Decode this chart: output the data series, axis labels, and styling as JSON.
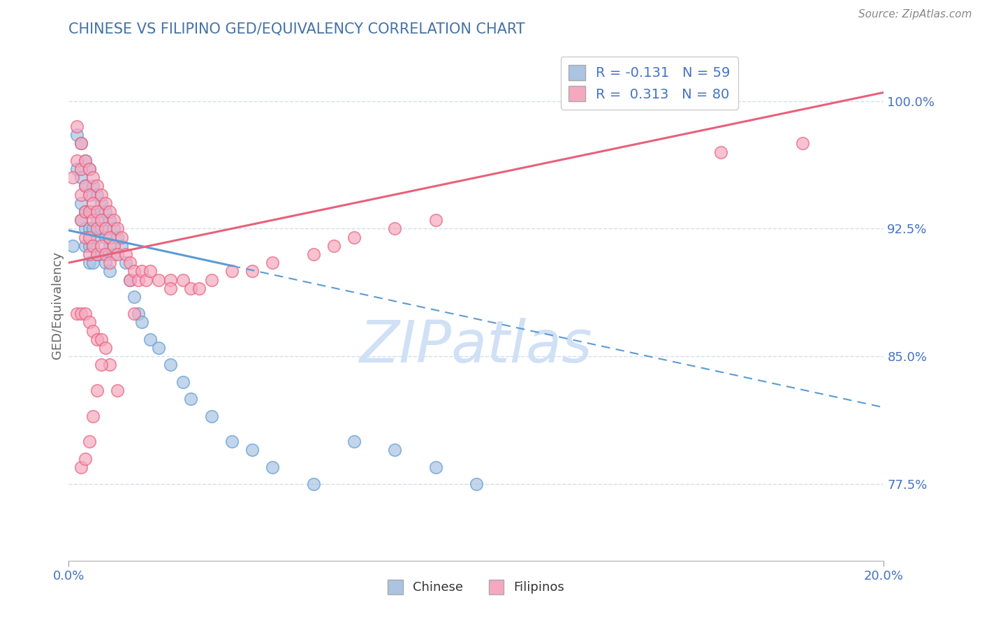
{
  "title": "CHINESE VS FILIPINO GED/EQUIVALENCY CORRELATION CHART",
  "source": "Source: ZipAtlas.com",
  "ylabel": "GED/Equivalency",
  "yticks_shown": [
    0.775,
    0.85,
    0.925,
    1.0
  ],
  "ytick_labels_shown": [
    "77.5%",
    "85.0%",
    "92.5%",
    "100.0%"
  ],
  "xlim": [
    0.0,
    0.2
  ],
  "ylim": [
    0.73,
    1.03
  ],
  "chinese_R": -0.131,
  "chinese_N": 59,
  "filipino_R": 0.313,
  "filipino_N": 80,
  "chinese_color": "#aac4e2",
  "filipino_color": "#f5a8c0",
  "chinese_line_color": "#5b9bd5",
  "filipino_line_color": "#e8607a",
  "grid_color": "#d0dff0",
  "title_color": "#4472a8",
  "axis_color": "#4472c4",
  "watermark_color": "#d0e0f5",
  "chinese_x": [
    0.001,
    0.002,
    0.002,
    0.003,
    0.003,
    0.003,
    0.003,
    0.004,
    0.004,
    0.004,
    0.004,
    0.004,
    0.005,
    0.005,
    0.005,
    0.005,
    0.005,
    0.005,
    0.006,
    0.006,
    0.006,
    0.006,
    0.006,
    0.007,
    0.007,
    0.007,
    0.007,
    0.008,
    0.008,
    0.008,
    0.009,
    0.009,
    0.009,
    0.01,
    0.01,
    0.01,
    0.011,
    0.011,
    0.012,
    0.013,
    0.014,
    0.015,
    0.016,
    0.017,
    0.018,
    0.02,
    0.022,
    0.025,
    0.028,
    0.03,
    0.035,
    0.04,
    0.045,
    0.05,
    0.06,
    0.07,
    0.08,
    0.09,
    0.1
  ],
  "chinese_y": [
    0.915,
    0.98,
    0.96,
    0.975,
    0.955,
    0.94,
    0.93,
    0.965,
    0.95,
    0.935,
    0.925,
    0.915,
    0.96,
    0.945,
    0.935,
    0.925,
    0.915,
    0.905,
    0.95,
    0.935,
    0.925,
    0.915,
    0.905,
    0.945,
    0.93,
    0.92,
    0.91,
    0.94,
    0.925,
    0.91,
    0.935,
    0.92,
    0.905,
    0.93,
    0.915,
    0.9,
    0.925,
    0.91,
    0.92,
    0.915,
    0.905,
    0.895,
    0.885,
    0.875,
    0.87,
    0.86,
    0.855,
    0.845,
    0.835,
    0.825,
    0.815,
    0.8,
    0.795,
    0.785,
    0.775,
    0.8,
    0.795,
    0.785,
    0.775
  ],
  "filipino_x": [
    0.001,
    0.002,
    0.002,
    0.003,
    0.003,
    0.003,
    0.003,
    0.004,
    0.004,
    0.004,
    0.004,
    0.005,
    0.005,
    0.005,
    0.005,
    0.005,
    0.006,
    0.006,
    0.006,
    0.006,
    0.007,
    0.007,
    0.007,
    0.007,
    0.008,
    0.008,
    0.008,
    0.009,
    0.009,
    0.009,
    0.01,
    0.01,
    0.01,
    0.011,
    0.011,
    0.012,
    0.012,
    0.013,
    0.014,
    0.015,
    0.015,
    0.016,
    0.017,
    0.018,
    0.019,
    0.02,
    0.022,
    0.025,
    0.028,
    0.03,
    0.032,
    0.035,
    0.04,
    0.045,
    0.05,
    0.06,
    0.065,
    0.07,
    0.08,
    0.09,
    0.002,
    0.003,
    0.004,
    0.005,
    0.006,
    0.007,
    0.008,
    0.009,
    0.01,
    0.012,
    0.003,
    0.004,
    0.005,
    0.006,
    0.007,
    0.008,
    0.016,
    0.025,
    0.16,
    0.18
  ],
  "filipino_y": [
    0.955,
    0.985,
    0.965,
    0.975,
    0.96,
    0.945,
    0.93,
    0.965,
    0.95,
    0.935,
    0.92,
    0.96,
    0.945,
    0.935,
    0.92,
    0.91,
    0.955,
    0.94,
    0.93,
    0.915,
    0.95,
    0.935,
    0.925,
    0.91,
    0.945,
    0.93,
    0.915,
    0.94,
    0.925,
    0.91,
    0.935,
    0.92,
    0.905,
    0.93,
    0.915,
    0.925,
    0.91,
    0.92,
    0.91,
    0.905,
    0.895,
    0.9,
    0.895,
    0.9,
    0.895,
    0.9,
    0.895,
    0.895,
    0.895,
    0.89,
    0.89,
    0.895,
    0.9,
    0.9,
    0.905,
    0.91,
    0.915,
    0.92,
    0.925,
    0.93,
    0.875,
    0.875,
    0.875,
    0.87,
    0.865,
    0.86,
    0.86,
    0.855,
    0.845,
    0.83,
    0.785,
    0.79,
    0.8,
    0.815,
    0.83,
    0.845,
    0.875,
    0.89,
    0.97,
    0.975
  ]
}
